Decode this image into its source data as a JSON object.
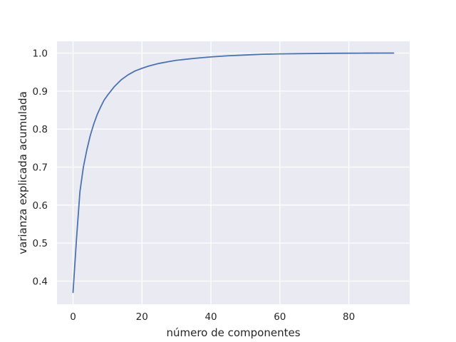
{
  "chart_data": {
    "type": "line",
    "title": "",
    "xlabel": "número de componentes",
    "ylabel": "varianza explicada acumulada",
    "xlim": [
      -4.65,
      97.65
    ],
    "ylim": [
      0.339,
      1.031
    ],
    "xticks": [
      0,
      20,
      40,
      60,
      80
    ],
    "yticks": [
      0.4,
      0.5,
      0.6,
      0.7,
      0.8,
      0.9,
      1.0
    ],
    "xtick_labels": [
      "0",
      "20",
      "40",
      "60",
      "80"
    ],
    "ytick_labels": [
      "0.4",
      "0.5",
      "0.6",
      "0.7",
      "0.8",
      "0.9",
      "1.0"
    ],
    "grid": true,
    "style": {
      "background": "#eaeaf2",
      "grid_color": "#ffffff",
      "line_color": "#4c72b0"
    },
    "series": [
      {
        "x": [
          0,
          1,
          2,
          3,
          4,
          5,
          6,
          7,
          8,
          9,
          10,
          12,
          14,
          16,
          18,
          20,
          22,
          25,
          28,
          30,
          35,
          40,
          45,
          50,
          55,
          60,
          65,
          70,
          75,
          80,
          85,
          90,
          93
        ],
        "y": [
          0.37,
          0.51,
          0.635,
          0.7,
          0.745,
          0.783,
          0.813,
          0.838,
          0.858,
          0.876,
          0.889,
          0.912,
          0.93,
          0.943,
          0.953,
          0.96,
          0.966,
          0.973,
          0.978,
          0.981,
          0.986,
          0.99,
          0.993,
          0.995,
          0.997,
          0.998,
          0.9985,
          0.999,
          0.9995,
          0.9997,
          0.9999,
          1.0,
          1.0
        ]
      }
    ]
  }
}
